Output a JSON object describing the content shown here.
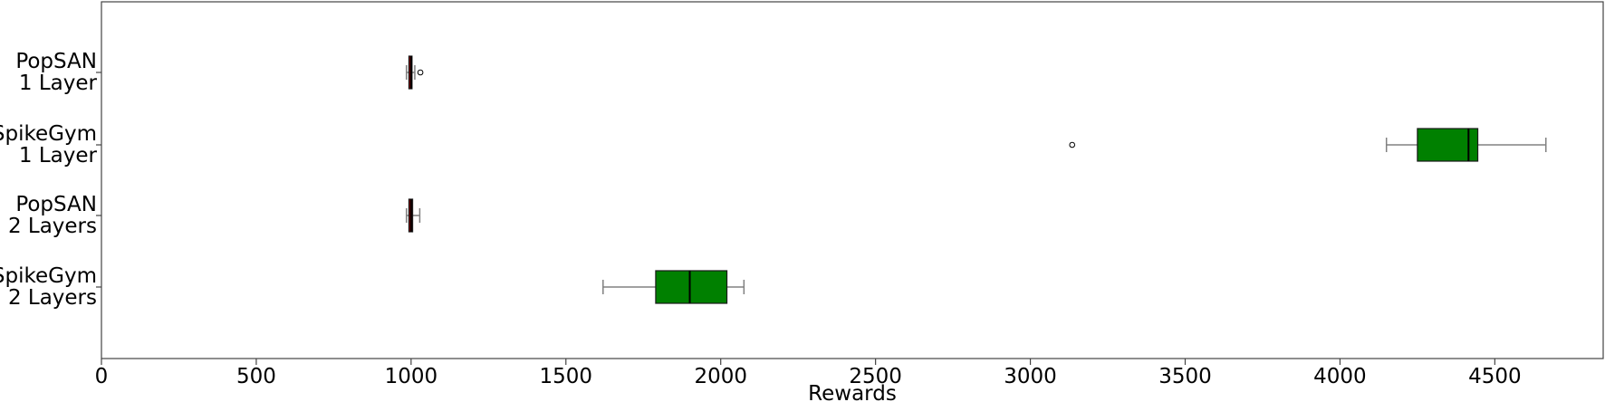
{
  "chart_data": {
    "type": "boxplot",
    "orientation": "horizontal",
    "xlabel": "Rewards",
    "xlim": [
      0,
      4850
    ],
    "xticks": [
      0,
      500,
      1000,
      1500,
      2000,
      2500,
      3000,
      3500,
      4000,
      4500
    ],
    "grid": false,
    "legend": "none",
    "categories": [
      {
        "label_line1": "PopSAN",
        "label_line2": "1 Layer",
        "whisker_low": 985,
        "q1": 993,
        "median": 1000,
        "q3": 1003,
        "whisker_high": 1012,
        "outliers": [
          1030
        ],
        "color": "#8b0000"
      },
      {
        "label_line1": "SpikeGym",
        "label_line2": "1 Layer",
        "whisker_low": 4150,
        "q1": 4250,
        "median": 4415,
        "q3": 4445,
        "whisker_high": 4665,
        "outliers": [
          3135
        ],
        "color": "#008000"
      },
      {
        "label_line1": "PopSAN",
        "label_line2": "2 Layers",
        "whisker_low": 985,
        "q1": 993,
        "median": 1000,
        "q3": 1005,
        "whisker_high": 1028,
        "outliers": [],
        "color": "#8b0000"
      },
      {
        "label_line1": "SpikeGym",
        "label_line2": "2 Layers",
        "whisker_low": 1620,
        "q1": 1790,
        "median": 1900,
        "q3": 2020,
        "whisker_high": 2075,
        "outliers": [],
        "color": "#008000"
      }
    ]
  }
}
